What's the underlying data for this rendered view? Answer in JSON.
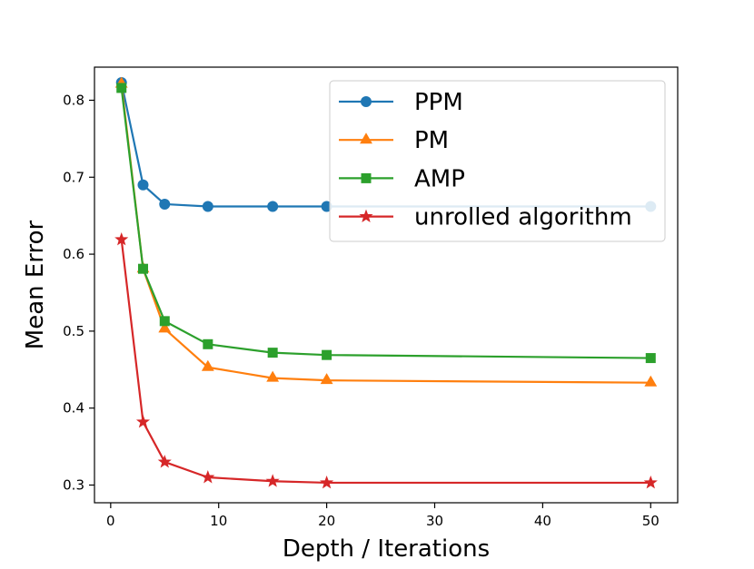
{
  "chart_data": {
    "type": "line",
    "title": "",
    "xlabel": "Depth / Iterations",
    "ylabel": "Mean Error",
    "xlim": [
      -1.5,
      52.5
    ],
    "ylim": [
      0.277,
      0.843
    ],
    "xticks": [
      0,
      10,
      20,
      30,
      40,
      50
    ],
    "xtick_labels": [
      "0",
      "10",
      "20",
      "30",
      "40",
      "50"
    ],
    "yticks": [
      0.3,
      0.4,
      0.5,
      0.6,
      0.7,
      0.8
    ],
    "ytick_labels": [
      "0.3",
      "0.4",
      "0.5",
      "0.6",
      "0.7",
      "0.8"
    ],
    "grid": false,
    "legend_position": "top-right",
    "series": [
      {
        "name": "PPM",
        "color": "#1f77b4",
        "marker": "circle",
        "x": [
          1,
          3,
          5,
          9,
          15,
          20,
          50
        ],
        "y": [
          0.823,
          0.69,
          0.665,
          0.662,
          0.662,
          0.662,
          0.662
        ]
      },
      {
        "name": "PM",
        "color": "#ff7f0e",
        "marker": "triangle",
        "x": [
          1,
          3,
          5,
          9,
          15,
          20,
          50
        ],
        "y": [
          0.821,
          0.581,
          0.503,
          0.453,
          0.439,
          0.436,
          0.433
        ]
      },
      {
        "name": "AMP",
        "color": "#2ca02c",
        "marker": "square",
        "x": [
          1,
          3,
          5,
          9,
          15,
          20,
          50
        ],
        "y": [
          0.816,
          0.581,
          0.513,
          0.483,
          0.472,
          0.469,
          0.465
        ]
      },
      {
        "name": "unrolled algorithm",
        "color": "#d62728",
        "marker": "star",
        "x": [
          1,
          3,
          5,
          9,
          15,
          20,
          50
        ],
        "y": [
          0.619,
          0.382,
          0.33,
          0.31,
          0.305,
          0.303,
          0.303
        ]
      }
    ]
  }
}
